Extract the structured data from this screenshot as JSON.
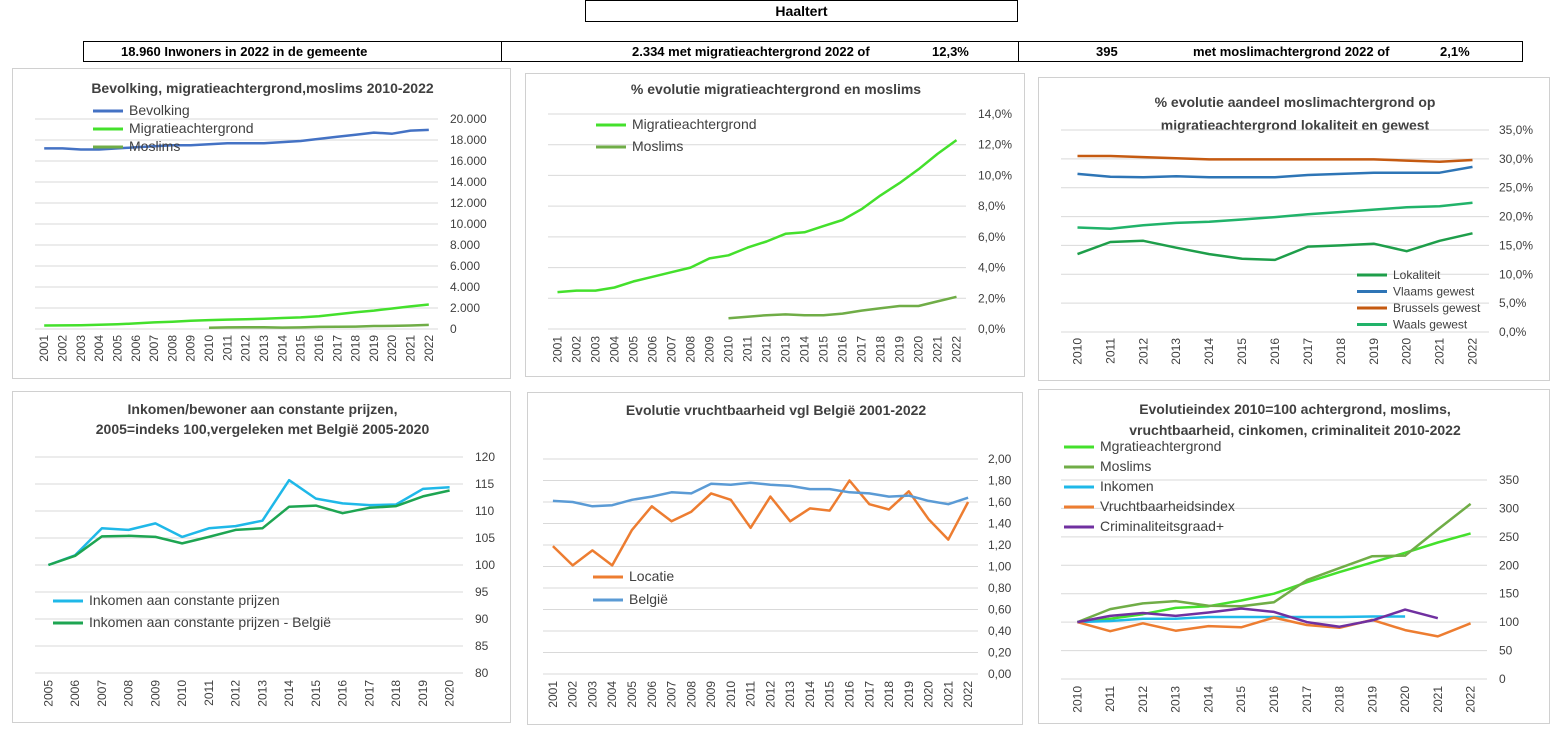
{
  "header": {
    "title": "Haaltert",
    "summary": {
      "inwoners": "18.960 Inwoners in 2022 in de gemeente",
      "migratie": "2.334 met migratieachtergrond 2022 of",
      "migratie_pct": "12,3%",
      "moslim_count": "395",
      "moslim_label": "met moslimachtergrond 2022 of",
      "moslim_pct": "2,1%"
    }
  },
  "chart_data": [
    {
      "id": "c1",
      "type": "line",
      "title": "Bevolking, migratieachtergrond,moslims  2010-2022",
      "x": [
        "2001",
        "2002",
        "2003",
        "2004",
        "2005",
        "2006",
        "2007",
        "2008",
        "2009",
        "2010",
        "2011",
        "2012",
        "2013",
        "2014",
        "2015",
        "2016",
        "2017",
        "2018",
        "2019",
        "2020",
        "2021",
        "2022"
      ],
      "y_ticks": [
        "0",
        "2.000",
        "4.000",
        "6.000",
        "8.000",
        "10.000",
        "12.000",
        "14.000",
        "16.000",
        "18.000",
        "20.000"
      ],
      "ylim": [
        0,
        20000
      ],
      "y_axis_side": "right",
      "legend_position": "top-left",
      "series": [
        {
          "name": "Bevolking",
          "color": "#4472c4",
          "values": [
            17200,
            17200,
            17100,
            17100,
            17200,
            17300,
            17400,
            17500,
            17500,
            17600,
            17700,
            17700,
            17700,
            17800,
            17900,
            18100,
            18300,
            18500,
            18700,
            18600,
            18900,
            18960
          ]
        },
        {
          "name": "Migratieachtergrond",
          "color": "#44e02c",
          "values": [
            330,
            340,
            360,
            400,
            450,
            530,
            630,
            700,
            780,
            850,
            900,
            930,
            980,
            1050,
            1100,
            1220,
            1400,
            1600,
            1750,
            1950,
            2150,
            2334
          ]
        },
        {
          "name": "Moslims",
          "color": "#70ad47",
          "values": [
            null,
            null,
            null,
            null,
            null,
            null,
            null,
            null,
            null,
            120,
            150,
            160,
            170,
            130,
            150,
            200,
            210,
            230,
            290,
            300,
            330,
            395
          ]
        }
      ]
    },
    {
      "id": "c2",
      "type": "line",
      "title": "% evolutie migratieachtergrond  en moslims",
      "x": [
        "2001",
        "2002",
        "2003",
        "2004",
        "2005",
        "2006",
        "2007",
        "2008",
        "2009",
        "2010",
        "2011",
        "2012",
        "2013",
        "2014",
        "2015",
        "2016",
        "2017",
        "2018",
        "2019",
        "2020",
        "2021",
        "2022"
      ],
      "y_ticks": [
        "0,0%",
        "2,0%",
        "4,0%",
        "6,0%",
        "8,0%",
        "10,0%",
        "12,0%",
        "14,0%"
      ],
      "ylim": [
        0,
        14
      ],
      "y_axis_side": "right",
      "legend_position": "top-left",
      "series": [
        {
          "name": "Migratieachtergrond",
          "color": "#44e02c",
          "values": [
            2.4,
            2.5,
            2.5,
            2.7,
            3.1,
            3.4,
            3.7,
            4.0,
            4.6,
            4.8,
            5.3,
            5.7,
            6.2,
            6.3,
            6.7,
            7.1,
            7.8,
            8.7,
            9.5,
            10.4,
            11.4,
            12.3
          ]
        },
        {
          "name": "Moslims",
          "color": "#70ad47",
          "values": [
            null,
            null,
            null,
            null,
            null,
            null,
            null,
            null,
            null,
            0.7,
            0.8,
            0.9,
            0.95,
            0.9,
            0.9,
            1.0,
            1.2,
            1.35,
            1.5,
            1.5,
            1.8,
            2.1
          ]
        }
      ]
    },
    {
      "id": "c3",
      "type": "line",
      "title": "% evolutie aandeel moslimachtergrond op migratieachtergrond lokaliteit  en gewest",
      "title_lines": [
        "% evolutie aandeel moslimachtergrond op",
        "migratieachtergrond lokaliteit  en gewest"
      ],
      "x": [
        "2010",
        "2011",
        "2012",
        "2013",
        "2014",
        "2015",
        "2016",
        "2017",
        "2018",
        "2019",
        "2020",
        "2021",
        "2022"
      ],
      "y_ticks": [
        "0,0%",
        "5,0%",
        "10,0%",
        "15,0%",
        "20,0%",
        "25,0%",
        "30,0%",
        "35,0%"
      ],
      "ylim": [
        0,
        35
      ],
      "y_axis_side": "right",
      "legend_position": "bottom-right",
      "series": [
        {
          "name": "Lokaliteit",
          "color": "#1e9e4a",
          "values": [
            13.5,
            15.6,
            15.8,
            14.6,
            13.5,
            12.7,
            12.5,
            14.8,
            15.0,
            15.3,
            14.0,
            15.8,
            17.1
          ]
        },
        {
          "name": "Vlaams gewest",
          "color": "#2e75b6",
          "values": [
            27.4,
            26.9,
            26.8,
            27.0,
            26.8,
            26.8,
            26.8,
            27.2,
            27.4,
            27.6,
            27.6,
            27.6,
            28.6
          ]
        },
        {
          "name": "Brussels gewest",
          "color": "#c55a11",
          "values": [
            30.5,
            30.5,
            30.3,
            30.1,
            29.9,
            29.9,
            29.9,
            29.9,
            29.9,
            29.9,
            29.7,
            29.5,
            29.8
          ]
        },
        {
          "name": "Waals gewest",
          "color": "#21b36a",
          "values": [
            18.1,
            17.9,
            18.5,
            18.9,
            19.1,
            19.5,
            19.9,
            20.4,
            20.8,
            21.2,
            21.6,
            21.8,
            22.4
          ]
        }
      ]
    },
    {
      "id": "c4",
      "type": "line",
      "title": "Inkomen/bewoner aan constante prijzen, 2005=indeks 100,vergeleken met België 2005-2020",
      "title_lines": [
        "Inkomen/bewoner aan constante prijzen,",
        "2005=indeks 100,vergeleken  met België  2005-2020"
      ],
      "x": [
        "2005",
        "2006",
        "2007",
        "2008",
        "2009",
        "2010",
        "2011",
        "2012",
        "2013",
        "2014",
        "2015",
        "2016",
        "2017",
        "2018",
        "2019",
        "2020"
      ],
      "y_ticks": [
        "80",
        "85",
        "90",
        "95",
        "100",
        "105",
        "110",
        "115",
        "120"
      ],
      "ylim": [
        80,
        120
      ],
      "y_axis_side": "right",
      "legend_position": "bottom-left",
      "series": [
        {
          "name": "Inkomen aan constante prijzen",
          "color": "#1fb8e8",
          "values": [
            100,
            101.8,
            106.8,
            106.5,
            107.7,
            105.2,
            106.8,
            107.2,
            108.2,
            115.7,
            112.3,
            111.4,
            111.1,
            111.2,
            114.1,
            114.4
          ]
        },
        {
          "name": "Inkomen aan constante prijzen - België",
          "color": "#1ea552",
          "values": [
            100,
            101.7,
            105.3,
            105.4,
            105.2,
            104.0,
            105.2,
            106.5,
            106.8,
            110.8,
            111.0,
            109.6,
            110.6,
            110.9,
            112.7,
            113.8
          ]
        }
      ]
    },
    {
      "id": "c5",
      "type": "line",
      "title": "Evolutie vruchtbaarheid vgl België 2001-2022",
      "x": [
        "2001",
        "2002",
        "2003",
        "2004",
        "2005",
        "2006",
        "2007",
        "2008",
        "2009",
        "2010",
        "2011",
        "2012",
        "2013",
        "2014",
        "2015",
        "2016",
        "2017",
        "2018",
        "2019",
        "2020",
        "2021",
        "2022"
      ],
      "y_ticks": [
        "0,00",
        "0,20",
        "0,40",
        "0,60",
        "0,80",
        "1,00",
        "1,20",
        "1,40",
        "1,60",
        "1,80",
        "2,00"
      ],
      "ylim": [
        0,
        2.0
      ],
      "y_axis_side": "right",
      "legend_position": "bottom-left",
      "series": [
        {
          "name": "Locatie",
          "color": "#ed7d31",
          "values": [
            1.19,
            1.01,
            1.15,
            1.01,
            1.34,
            1.56,
            1.42,
            1.51,
            1.68,
            1.62,
            1.36,
            1.65,
            1.42,
            1.54,
            1.52,
            1.8,
            1.58,
            1.53,
            1.7,
            1.44,
            1.25,
            1.6
          ]
        },
        {
          "name": "België",
          "color": "#5b9bd5",
          "values": [
            1.61,
            1.6,
            1.56,
            1.57,
            1.62,
            1.65,
            1.69,
            1.68,
            1.77,
            1.76,
            1.78,
            1.76,
            1.75,
            1.72,
            1.72,
            1.69,
            1.68,
            1.65,
            1.66,
            1.61,
            1.58,
            1.64
          ]
        }
      ]
    },
    {
      "id": "c6",
      "type": "line",
      "title": "Evolutieindex 2010=100 achtergrond, moslims, vruchtbaarheid, cinkomen, criminaliteit  2010-2022",
      "title_lines": [
        "Evolutieindex 2010=100 achtergrond, moslims,",
        "vruchtbaarheid, cinkomen, criminaliteit  2010-2022"
      ],
      "x": [
        "2010",
        "2011",
        "2012",
        "2013",
        "2014",
        "2015",
        "2016",
        "2017",
        "2018",
        "2019",
        "2020",
        "2021",
        "2022"
      ],
      "y_ticks": [
        "0",
        "50",
        "100",
        "150",
        "200",
        "250",
        "300",
        "350"
      ],
      "ylim": [
        0,
        350
      ],
      "y_axis_side": "right",
      "legend_position": "top-left",
      "series": [
        {
          "name": "Mgratieachtergrond",
          "color": "#44e02c",
          "values": [
            100,
            106,
            114,
            125,
            128,
            138,
            150,
            170,
            188,
            205,
            222,
            240,
            256
          ]
        },
        {
          "name": "Moslims",
          "color": "#70ad47",
          "values": [
            100,
            123,
            133,
            137,
            129,
            128,
            135,
            174,
            195,
            216,
            217,
            263,
            308
          ]
        },
        {
          "name": "Inkomen",
          "color": "#1fb8e8",
          "values": [
            100,
            102,
            106,
            106,
            109,
            109,
            109,
            109,
            109,
            110,
            110,
            null,
            null
          ]
        },
        {
          "name": "Vruchtbaarheidsindex",
          "color": "#ed7d31",
          "values": [
            100,
            84,
            98,
            85,
            93,
            91,
            108,
            95,
            90,
            104,
            86,
            75,
            98
          ]
        },
        {
          "name": "Criminaliteitsgraad+",
          "color": "#7030a0",
          "values": [
            100,
            111,
            116,
            111,
            117,
            124,
            118,
            100,
            92,
            103,
            122,
            107,
            null
          ]
        }
      ]
    }
  ]
}
